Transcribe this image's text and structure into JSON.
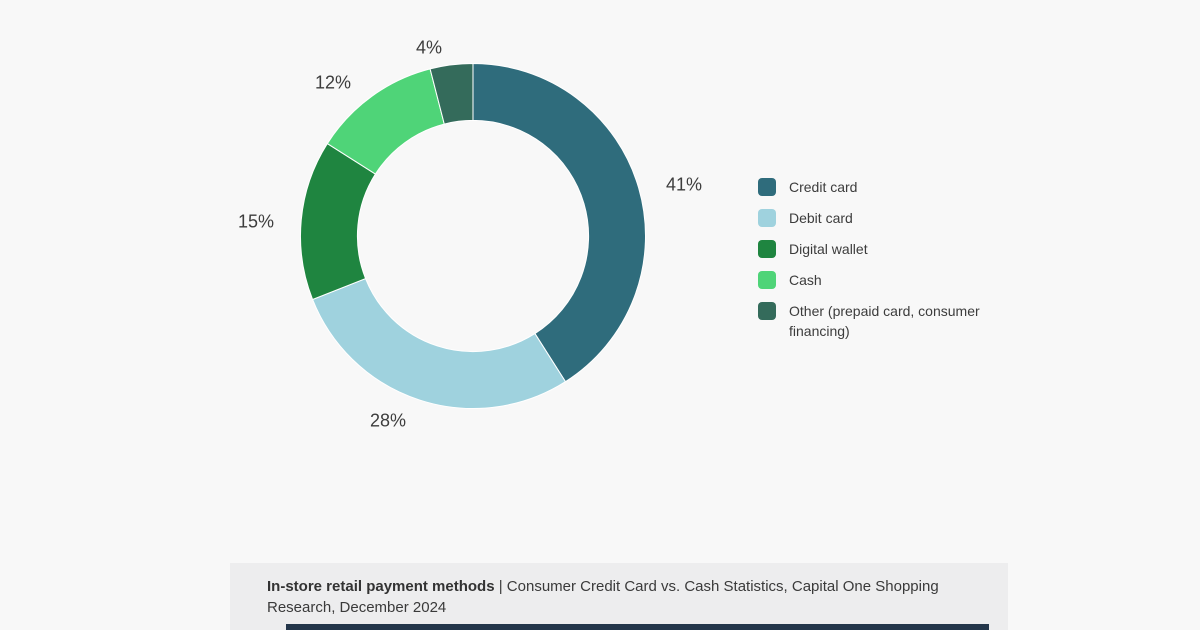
{
  "chart_data": {
    "type": "pie",
    "subtype": "donut",
    "start_angle_deg": 0,
    "direction": "clockwise",
    "inner_radius_ratio": 0.67,
    "legend_position": "right",
    "slices": [
      {
        "label": "Credit card",
        "value": 41,
        "display": "41%",
        "color": "#2f6c7c"
      },
      {
        "label": "Debit card",
        "value": 28,
        "display": "28%",
        "color": "#9fd2de"
      },
      {
        "label": "Digital wallet",
        "value": 15,
        "display": "15%",
        "color": "#1f8540"
      },
      {
        "label": "Cash",
        "value": 12,
        "display": "12%",
        "color": "#4fd478"
      },
      {
        "label": "Other (prepaid card, consumer financing)",
        "value": 4,
        "display": "4%",
        "color": "#346b5b"
      }
    ]
  },
  "caption": {
    "bold": "In-store retail payment methods",
    "separator": " | ",
    "rest": "Consumer Credit Card vs. Cash Statistics, Capital One Shopping Research, December 2024"
  },
  "colors": {
    "page_bg": "#f8f8f8",
    "caption_bg": "#ededee",
    "label_text": "#3d3d3d",
    "bottom_bar": "#24364a"
  }
}
